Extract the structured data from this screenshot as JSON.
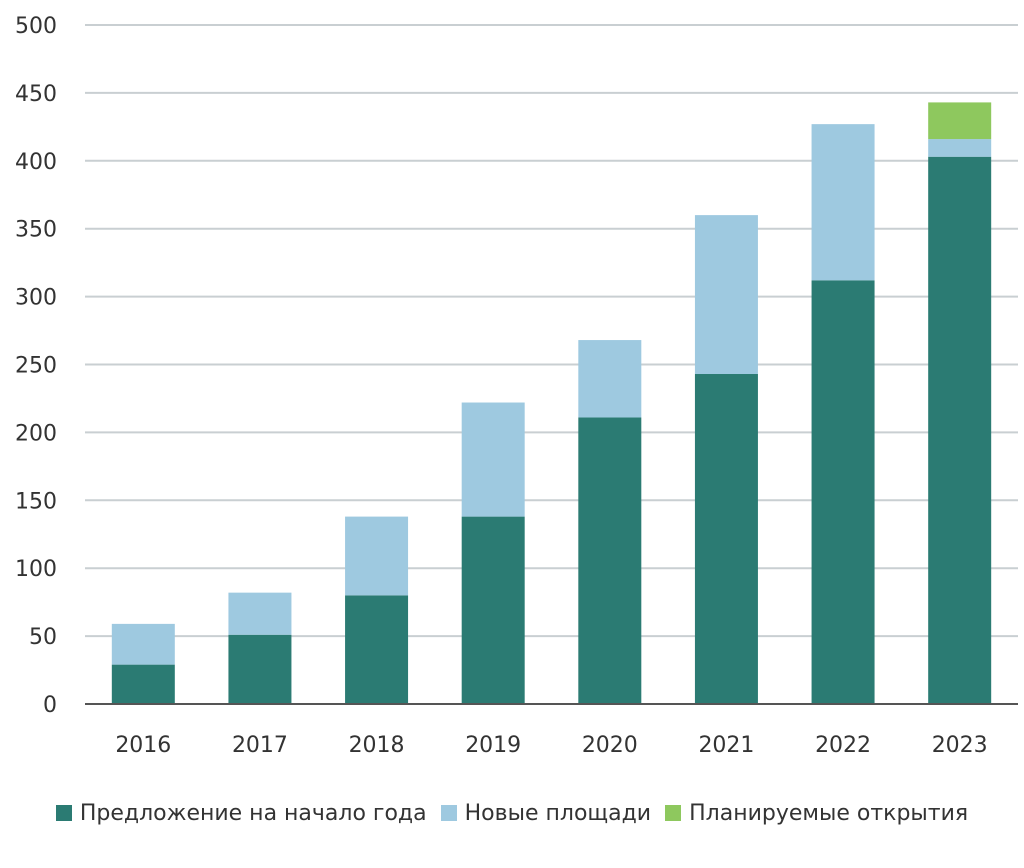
{
  "chart_data": {
    "type": "bar",
    "stacked": true,
    "categories": [
      "2016",
      "2017",
      "2018",
      "2019",
      "2020",
      "2021",
      "2022",
      "2023"
    ],
    "series": [
      {
        "name": "Предложение на начало года",
        "color": "#2b7b73",
        "values": [
          29,
          51,
          80,
          138,
          211,
          243,
          312,
          403
        ]
      },
      {
        "name": "Новые площади",
        "color": "#9ec9e0",
        "values": [
          30,
          31,
          58,
          84,
          57,
          117,
          115,
          13
        ]
      },
      {
        "name": "Планируемые открытия",
        "color": "#8ec85e",
        "values": [
          0,
          0,
          0,
          0,
          0,
          0,
          0,
          27
        ]
      }
    ],
    "ylim": [
      0,
      500
    ],
    "yticks": [
      "0",
      "50",
      "100",
      "150",
      "200",
      "250",
      "300",
      "350",
      "400",
      "450",
      "500"
    ],
    "grid": true,
    "legend_position": "bottom"
  }
}
